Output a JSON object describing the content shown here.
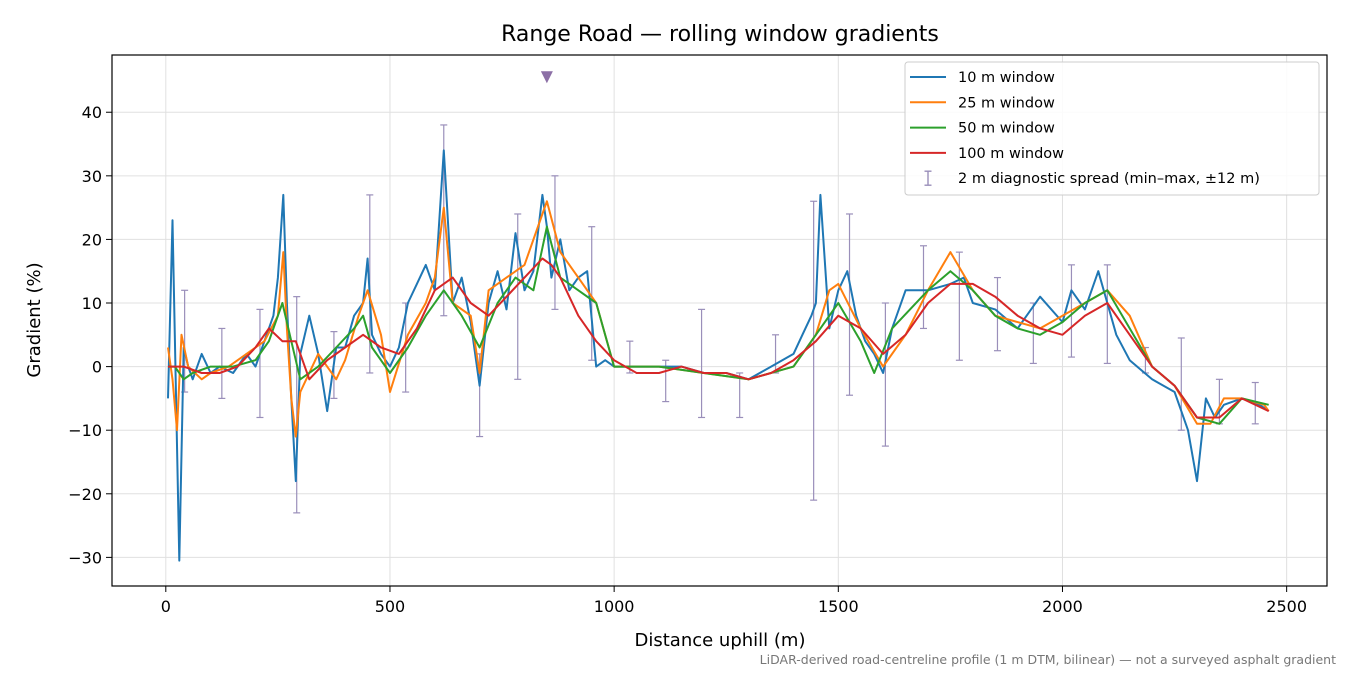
{
  "chart_data": {
    "type": "line",
    "title": "Range Road — rolling window gradients",
    "xlabel": "Distance uphill (m)",
    "ylabel": "Gradient (%)",
    "xlim": [
      -120,
      2590
    ],
    "ylim": [
      -34.5,
      49
    ],
    "xticks": [
      0,
      500,
      1000,
      1500,
      2000,
      2500
    ],
    "yticks": [
      -30,
      -20,
      -10,
      0,
      10,
      20,
      30,
      40
    ],
    "grid": true,
    "legend_position": "top-right",
    "footnote": "LiDAR-derived road-centreline profile (1 m DTM, bilinear) — not a surveyed asphalt gradient",
    "series": [
      {
        "name": "10 m window",
        "color": "#1f77b4",
        "x": [
          5,
          15,
          20,
          30,
          40,
          50,
          60,
          80,
          100,
          120,
          150,
          180,
          200,
          220,
          240,
          250,
          262,
          270,
          280,
          290,
          300,
          320,
          340,
          360,
          380,
          400,
          420,
          440,
          450,
          460,
          480,
          500,
          520,
          540,
          560,
          580,
          600,
          620,
          640,
          660,
          680,
          700,
          720,
          740,
          760,
          780,
          800,
          820,
          840,
          850,
          860,
          880,
          900,
          920,
          940,
          960,
          980,
          1000,
          1050,
          1100,
          1150,
          1200,
          1250,
          1300,
          1350,
          1400,
          1420,
          1440,
          1450,
          1460,
          1480,
          1500,
          1520,
          1540,
          1560,
          1580,
          1600,
          1620,
          1650,
          1700,
          1750,
          1780,
          1800,
          1850,
          1900,
          1950,
          2000,
          2020,
          2050,
          2080,
          2100,
          2120,
          2150,
          2200,
          2250,
          2280,
          2300,
          2320,
          2340,
          2360,
          2400,
          2440,
          2460
        ],
        "y": [
          -5,
          23,
          5,
          -30.5,
          3,
          0,
          -2,
          2,
          -1,
          0,
          -1,
          2,
          0,
          4,
          8,
          14,
          27,
          10,
          -5,
          -18,
          2,
          8,
          2,
          -7,
          3,
          3,
          8,
          10,
          17,
          5,
          2,
          0,
          3,
          10,
          13,
          16,
          12,
          34,
          10,
          14,
          7,
          -3,
          10,
          15,
          9,
          21,
          12,
          15,
          27,
          22,
          14,
          20,
          12,
          14,
          15,
          0,
          1,
          0,
          0,
          0,
          0,
          -1,
          -1,
          -2,
          0,
          2,
          5,
          8,
          10,
          27,
          6,
          12,
          15,
          8,
          4,
          2,
          -1,
          6,
          12,
          12,
          13,
          14,
          10,
          9,
          6,
          11,
          7,
          12,
          9,
          15,
          10,
          5,
          1,
          -2,
          -4,
          -10,
          -18,
          -5,
          -8,
          -6,
          -5,
          -6,
          -7
        ]
      },
      {
        "name": "25 m window",
        "color": "#ff7f0e",
        "x": [
          5,
          15,
          25,
          35,
          50,
          80,
          100,
          140,
          180,
          220,
          250,
          262,
          270,
          280,
          290,
          300,
          340,
          380,
          400,
          430,
          450,
          480,
          500,
          540,
          580,
          600,
          620,
          640,
          680,
          700,
          720,
          760,
          800,
          840,
          850,
          880,
          920,
          960,
          1000,
          1100,
          1200,
          1300,
          1400,
          1450,
          1480,
          1500,
          1550,
          1600,
          1650,
          1700,
          1750,
          1800,
          1850,
          1900,
          1950,
          2000,
          2050,
          2100,
          2150,
          2200,
          2250,
          2300,
          2330,
          2360,
          2400,
          2450,
          2460
        ],
        "y": [
          3,
          -2,
          -10,
          5,
          0,
          -2,
          -1,
          0,
          2,
          4,
          8,
          18,
          6,
          -5,
          -11,
          -4,
          2,
          -2,
          1,
          8,
          12,
          5,
          -4,
          5,
          10,
          14,
          25,
          10,
          8,
          -1,
          12,
          14,
          16,
          24,
          26,
          18,
          14,
          10,
          0,
          0,
          -1,
          -2,
          0,
          5,
          12,
          13,
          6,
          0,
          5,
          12,
          18,
          12,
          8,
          7,
          6,
          8,
          10,
          12,
          8,
          0,
          -3,
          -9,
          -9,
          -5,
          -5,
          -6,
          -7
        ]
      },
      {
        "name": "50 m window",
        "color": "#2ca02c",
        "x": [
          5,
          20,
          40,
          60,
          100,
          150,
          200,
          230,
          260,
          280,
          300,
          340,
          380,
          420,
          440,
          460,
          500,
          540,
          580,
          620,
          660,
          700,
          740,
          780,
          820,
          850,
          880,
          920,
          960,
          1000,
          1100,
          1200,
          1300,
          1400,
          1450,
          1500,
          1550,
          1580,
          1620,
          1700,
          1750,
          1800,
          1850,
          1900,
          1950,
          2000,
          2050,
          2100,
          2150,
          2200,
          2250,
          2300,
          2350,
          2400,
          2460
        ],
        "y": [
          0,
          0,
          -2,
          -1,
          0,
          0,
          1,
          4,
          10,
          4,
          -2,
          0,
          3,
          6,
          8,
          3,
          -1,
          3,
          8,
          12,
          8,
          3,
          10,
          14,
          12,
          22,
          14,
          12,
          10,
          0,
          0,
          -1,
          -2,
          0,
          5,
          10,
          4,
          -1,
          6,
          12,
          15,
          12,
          8,
          6,
          5,
          7,
          10,
          12,
          6,
          0,
          -3,
          -8,
          -9,
          -5,
          -6
        ]
      },
      {
        "name": "100 m window",
        "color": "#d62728",
        "x": [
          5,
          40,
          80,
          120,
          160,
          200,
          230,
          260,
          290,
          320,
          360,
          400,
          440,
          480,
          520,
          560,
          600,
          640,
          680,
          720,
          760,
          800,
          840,
          860,
          880,
          920,
          960,
          1000,
          1050,
          1100,
          1150,
          1200,
          1250,
          1300,
          1350,
          1400,
          1450,
          1500,
          1550,
          1600,
          1650,
          1700,
          1750,
          1800,
          1850,
          1900,
          1950,
          2000,
          2050,
          2100,
          2150,
          2200,
          2250,
          2300,
          2350,
          2400,
          2460
        ],
        "y": [
          0,
          0,
          -1,
          -1,
          0,
          3,
          6,
          4,
          4,
          -2,
          1,
          3,
          5,
          3,
          2,
          6,
          12,
          14,
          10,
          8,
          11,
          14,
          17,
          16,
          14,
          8,
          4,
          1,
          -1,
          -1,
          0,
          -1,
          -1,
          -2,
          -1,
          1,
          4,
          8,
          6,
          2,
          5,
          10,
          13,
          13,
          11,
          8,
          6,
          5,
          8,
          10,
          5,
          0,
          -3,
          -8,
          -8,
          -5,
          -7
        ]
      }
    ],
    "error_bars": {
      "name": "2 m diagnostic spread (min–max, ±12 m)",
      "color": "#9a8fba",
      "points": [
        {
          "x": 42,
          "min": -4,
          "max": 12
        },
        {
          "x": 125,
          "min": -5,
          "max": 6
        },
        {
          "x": 210,
          "min": -8,
          "max": 9
        },
        {
          "x": 292,
          "min": -23,
          "max": 11
        },
        {
          "x": 375,
          "min": -5,
          "max": 5.5
        },
        {
          "x": 455,
          "min": -1,
          "max": 27
        },
        {
          "x": 535,
          "min": -4,
          "max": 10
        },
        {
          "x": 620,
          "min": 8,
          "max": 38
        },
        {
          "x": 700,
          "min": -11,
          "max": 2
        },
        {
          "x": 785,
          "min": -2,
          "max": 24
        },
        {
          "x": 868,
          "min": 9,
          "max": 30
        },
        {
          "x": 950,
          "min": 1,
          "max": 22
        },
        {
          "x": 1035,
          "min": -1,
          "max": 4
        },
        {
          "x": 1115,
          "min": -5.5,
          "max": 1
        },
        {
          "x": 1195,
          "min": -8,
          "max": 9
        },
        {
          "x": 1280,
          "min": -8,
          "max": -1
        },
        {
          "x": 1360,
          "min": -1,
          "max": 5
        },
        {
          "x": 1445,
          "min": -21,
          "max": 26
        },
        {
          "x": 1525,
          "min": -4.5,
          "max": 24
        },
        {
          "x": 1605,
          "min": -12.5,
          "max": 10
        },
        {
          "x": 1690,
          "min": 6,
          "max": 19
        },
        {
          "x": 1770,
          "min": 1,
          "max": 18
        },
        {
          "x": 1855,
          "min": 2.5,
          "max": 14
        },
        {
          "x": 1935,
          "min": 0.5,
          "max": 10
        },
        {
          "x": 2020,
          "min": 1.5,
          "max": 16
        },
        {
          "x": 2100,
          "min": 0.5,
          "max": 16
        },
        {
          "x": 2185,
          "min": -1,
          "max": 3
        },
        {
          "x": 2265,
          "min": -10,
          "max": 4.5
        },
        {
          "x": 2350,
          "min": -9,
          "max": -2
        },
        {
          "x": 2430,
          "min": -9,
          "max": -2.5
        }
      ]
    },
    "marker": {
      "x": 850,
      "y": 45.5,
      "color": "#8c6fa6",
      "shape": "triangle-down"
    }
  }
}
